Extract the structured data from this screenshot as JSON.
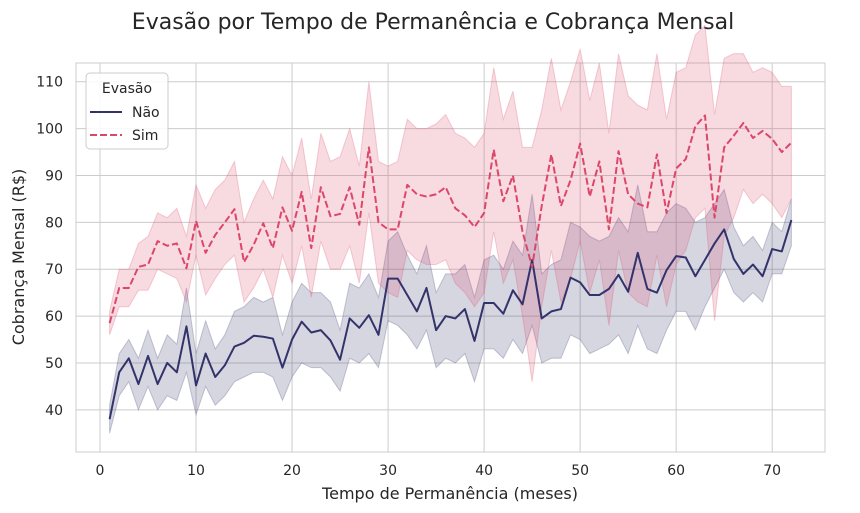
{
  "chart_data": {
    "type": "line",
    "title": "Evasão por Tempo de Permanência e Cobrança Mensal",
    "xlabel": "Tempo de Permanência (meses)",
    "ylabel": "Cobrança Mensal (R$)",
    "xlim": [
      -2.5,
      75.5
    ],
    "ylim": [
      31,
      114
    ],
    "xticks": [
      0,
      10,
      20,
      30,
      40,
      50,
      60,
      70
    ],
    "yticks": [
      40,
      50,
      60,
      70,
      80,
      90,
      100,
      110
    ],
    "grid": true,
    "legend": {
      "title": "Evasão",
      "placement": "top-left"
    },
    "series": [
      {
        "name": "Não",
        "color": "#33336b",
        "dash": "solid",
        "x": [
          1,
          2,
          3,
          4,
          5,
          6,
          7,
          8,
          9,
          10,
          11,
          12,
          13,
          14,
          15,
          16,
          17,
          18,
          19,
          20,
          21,
          22,
          23,
          24,
          25,
          26,
          27,
          28,
          29,
          30,
          31,
          32,
          33,
          34,
          35,
          36,
          37,
          38,
          39,
          40,
          41,
          42,
          43,
          44,
          45,
          46,
          47,
          48,
          49,
          50,
          51,
          52,
          53,
          54,
          55,
          56,
          57,
          58,
          59,
          60,
          61,
          62,
          63,
          64,
          65,
          66,
          67,
          68,
          69,
          70,
          71,
          72
        ],
        "y": [
          38,
          48,
          51,
          45.5,
          51.5,
          45.5,
          50,
          48,
          57.8,
          45.2,
          52,
          47,
          49.5,
          53.5,
          54.3,
          55.8,
          55.6,
          55.2,
          49,
          55,
          58.8,
          56.5,
          57,
          54.8,
          50.7,
          59.5,
          57.5,
          60.2,
          56,
          68,
          68,
          64.5,
          61,
          66,
          57,
          60,
          59.5,
          61.5,
          54.7,
          62.8,
          62.8,
          60.5,
          65.5,
          62.5,
          72,
          59.5,
          61,
          61.5,
          68.2,
          67.2,
          64.5,
          64.5,
          65.8,
          68.8,
          65.2,
          73.5,
          65.8,
          65,
          69.8,
          72.8,
          72.5,
          68.5,
          72,
          75.5,
          78.5,
          72.2,
          69,
          71,
          68.5,
          74.3,
          73.8,
          80.5
        ],
        "ci_lower": [
          35,
          43,
          46,
          40,
          45,
          40,
          43,
          42,
          48,
          39,
          45,
          41,
          43,
          46,
          47,
          48,
          48,
          47,
          42,
          47,
          50,
          49,
          49,
          47,
          44,
          51,
          50,
          52,
          49,
          59,
          58,
          56,
          53,
          57,
          49,
          51,
          50,
          52,
          46,
          53,
          53,
          51,
          55,
          52,
          58,
          50,
          51,
          51,
          56,
          55,
          52,
          53,
          54,
          56,
          52,
          58,
          53,
          52,
          57,
          61,
          61,
          57,
          62,
          66,
          70,
          65,
          63,
          65,
          63,
          69,
          69,
          75
        ],
        "ci_upper": [
          41,
          52,
          55,
          51,
          57,
          51,
          56,
          54,
          66,
          52,
          59,
          53,
          56,
          61,
          62,
          64,
          63,
          64,
          56,
          63,
          67,
          65,
          65,
          63,
          57,
          67,
          66,
          69,
          64,
          76,
          78,
          73,
          69,
          75,
          65,
          69,
          69,
          71,
          64,
          72,
          73,
          70,
          76,
          73,
          86,
          69,
          71,
          72,
          80,
          79,
          77,
          76,
          77,
          81,
          78,
          88,
          78,
          78,
          82,
          84,
          83,
          80,
          81,
          84,
          87,
          79,
          75,
          77,
          74,
          80,
          78,
          85
        ]
      },
      {
        "name": "Sim",
        "color": "#dc4769",
        "dash": "dashed",
        "x": [
          1,
          2,
          3,
          4,
          5,
          6,
          7,
          8,
          9,
          10,
          11,
          12,
          13,
          14,
          15,
          16,
          17,
          18,
          19,
          20,
          21,
          22,
          23,
          24,
          25,
          26,
          27,
          28,
          29,
          30,
          31,
          32,
          33,
          34,
          35,
          36,
          37,
          38,
          39,
          40,
          41,
          42,
          43,
          44,
          45,
          46,
          47,
          48,
          49,
          50,
          51,
          52,
          53,
          54,
          55,
          56,
          57,
          58,
          59,
          60,
          61,
          62,
          63,
          64,
          65,
          66,
          67,
          68,
          69,
          70,
          71,
          72
        ],
        "y": [
          58.5,
          66,
          66,
          70.5,
          71,
          76,
          75,
          75.5,
          70.2,
          80.3,
          73.5,
          77.3,
          80,
          82.8,
          71.5,
          75.2,
          79.8,
          74.5,
          83.2,
          78.2,
          86.5,
          74.5,
          87.5,
          81.3,
          81.8,
          87.5,
          79.5,
          96,
          80,
          78.5,
          78.5,
          88,
          86,
          85.5,
          86,
          87.5,
          83,
          81.5,
          79,
          82,
          95.5,
          84.5,
          90,
          78,
          70.5,
          83.5,
          94.5,
          83.5,
          89,
          96.8,
          85.5,
          93,
          78.5,
          95.2,
          86,
          84,
          83.2,
          94.5,
          82,
          91.5,
          93.5,
          100.5,
          102.8,
          81,
          96,
          98.5,
          101.2,
          98,
          99.5,
          97.8,
          95,
          97
        ],
        "ci_lower": [
          56,
          62,
          62,
          65.5,
          65.5,
          70,
          69,
          68,
          63,
          73,
          64.5,
          68,
          71,
          73,
          63,
          66,
          70,
          64,
          73,
          67,
          75,
          64,
          76,
          70,
          70,
          75,
          67,
          82,
          67,
          65,
          64,
          74,
          72,
          71,
          71,
          72,
          67,
          65,
          62,
          65,
          78,
          67,
          72,
          60,
          46,
          62,
          74,
          63,
          68,
          76,
          65,
          72,
          58,
          74,
          65,
          63,
          62,
          73,
          62,
          71,
          74,
          81,
          83,
          59,
          77,
          81,
          87,
          84,
          86,
          84,
          81,
          85
        ],
        "ci_upper": [
          61,
          70,
          70,
          75.5,
          77,
          82,
          81,
          83,
          77,
          88,
          83,
          87,
          89,
          93,
          80,
          85,
          89,
          85,
          94,
          90,
          98,
          85,
          99,
          93,
          94,
          100,
          92,
          110,
          93,
          92,
          93,
          102,
          100,
          100,
          101,
          103,
          99,
          98,
          96,
          99,
          113,
          102,
          108,
          96,
          96,
          104,
          115,
          104,
          110,
          117,
          106,
          114,
          99,
          116,
          107,
          105,
          104,
          116,
          102,
          112,
          113,
          120,
          122,
          103,
          115,
          116,
          116,
          112,
          113,
          112,
          109,
          109
        ]
      }
    ]
  }
}
